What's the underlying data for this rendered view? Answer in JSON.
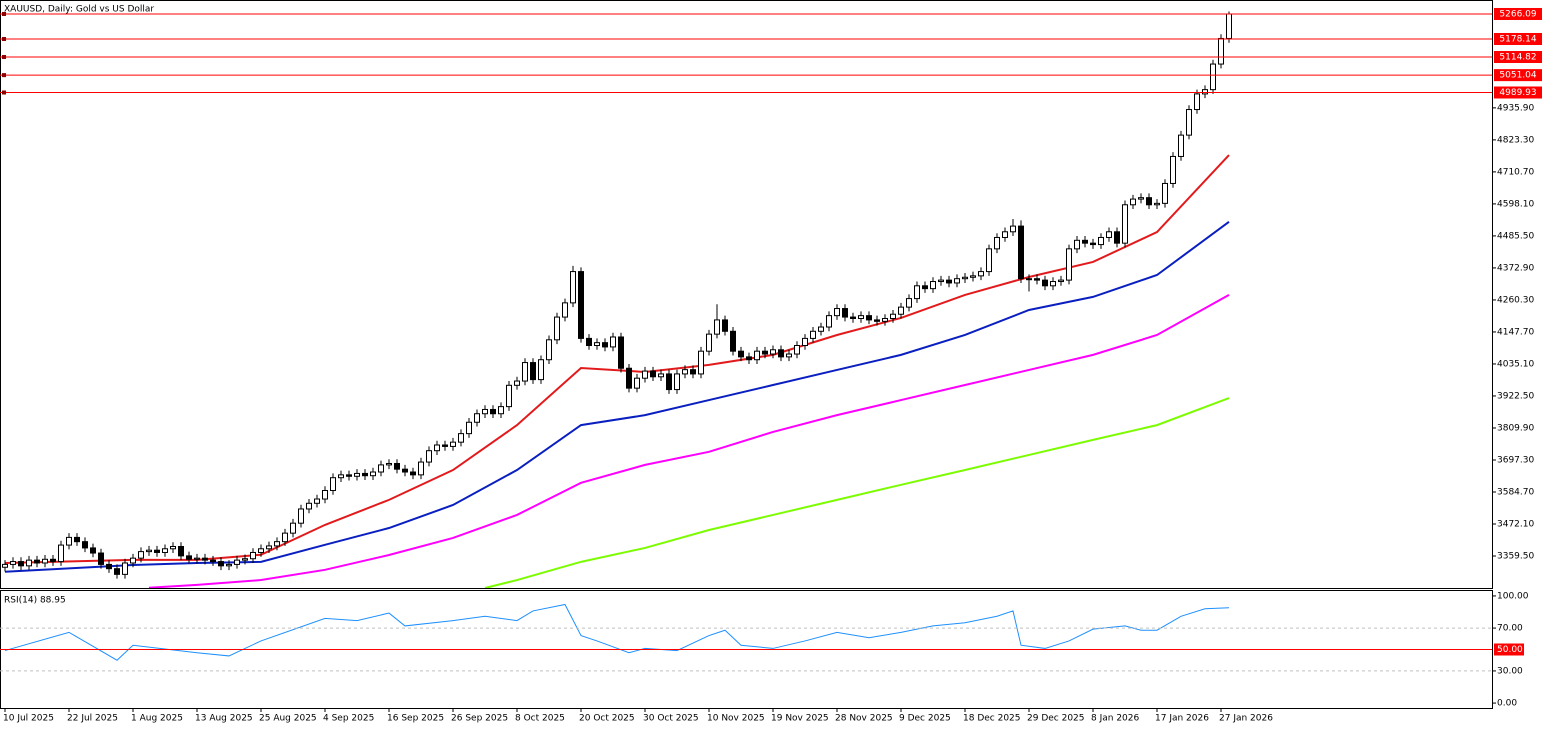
{
  "chart_data": [
    {
      "type": "candlestick",
      "title": "XAUUSD, Daily:  Gold vs US Dollar",
      "categories": [
        "10 Jul 2025",
        null,
        null,
        null,
        null,
        null,
        null,
        null,
        "22 Jul 2025",
        null,
        null,
        null,
        null,
        null,
        null,
        null,
        "1 Aug 2025",
        null,
        null,
        null,
        null,
        null,
        null,
        null,
        "13 Aug 2025",
        null,
        null,
        null,
        null,
        null,
        null,
        null,
        "25 Aug 2025",
        null,
        null,
        null,
        null,
        null,
        null,
        null,
        "4 Sep 2025",
        null,
        null,
        null,
        null,
        null,
        null,
        null,
        "16 Sep 2025",
        null,
        null,
        null,
        null,
        null,
        null,
        null,
        "26 Sep 2025",
        null,
        null,
        null,
        null,
        null,
        null,
        null,
        "8 Oct 2025",
        null,
        null,
        null,
        null,
        null,
        null,
        null,
        "20 Oct 2025",
        null,
        null,
        null,
        null,
        null,
        null,
        null,
        "30 Oct 2025",
        null,
        null,
        null,
        null,
        null,
        null,
        null,
        "10 Nov 2025",
        null,
        null,
        null,
        null,
        null,
        null,
        null,
        "19 Nov 2025",
        null,
        null,
        null,
        null,
        null,
        null,
        null,
        "28 Nov 2025",
        null,
        null,
        null,
        null,
        null,
        null,
        null,
        "9 Dec 2025",
        null,
        null,
        null,
        null,
        null,
        null,
        null,
        "18 Dec 2025",
        null,
        null,
        null,
        null,
        null,
        null,
        null,
        "29 Dec 2025",
        null,
        null,
        null,
        null,
        null,
        null,
        null,
        "8 Jan 2026",
        null,
        null,
        null,
        null,
        null,
        null,
        null,
        "17 Jan 2026",
        null,
        null,
        null,
        null,
        null,
        null,
        null,
        "27 Jan 2026",
        null
      ],
      "open": [
        3320,
        3330,
        3340,
        3325,
        3345,
        3335,
        3348,
        3340,
        3398,
        3425,
        3410,
        3388,
        3370,
        3330,
        3315,
        3295,
        3335,
        3352,
        3375,
        3380,
        3372,
        3385,
        3393,
        3360,
        3348,
        3352,
        3345,
        3340,
        3325,
        3330,
        3345,
        3350,
        3372,
        3385,
        3395,
        3410,
        3440,
        3475,
        3525,
        3545,
        3560,
        3590,
        3635,
        3645,
        3640,
        3650,
        3642,
        3655,
        3680,
        3685,
        3665,
        3655,
        3645,
        3690,
        3730,
        3750,
        3745,
        3760,
        3790,
        3830,
        3860,
        3875,
        3860,
        3885,
        3960,
        3975,
        4040,
        3980,
        4050,
        4120,
        4200,
        4250,
        4360,
        4125,
        4100,
        4110,
        4095,
        4130,
        4020,
        3950,
        3985,
        4010,
        3990,
        4000,
        3945,
        4000,
        4015,
        4000,
        4080,
        4140,
        4190,
        4150,
        4080,
        4060,
        4050,
        4080,
        4070,
        4085,
        4060,
        4070,
        4100,
        4125,
        4150,
        4165,
        4205,
        4230,
        4200,
        4195,
        4205,
        4190,
        4185,
        4195,
        4210,
        4235,
        4265,
        4310,
        4300,
        4325,
        4330,
        4320,
        4335,
        4340,
        4345,
        4360,
        4440,
        4480,
        4500,
        4520,
        4335,
        4335,
        4330,
        4310,
        4325,
        4330,
        4440,
        4470,
        4460,
        4455,
        4480,
        4500,
        4460,
        4595,
        4615,
        4620,
        4595,
        4600,
        4670,
        4765,
        4840,
        4930,
        4985,
        5000,
        5090,
        5180
      ],
      "high": [
        3345,
        3355,
        3355,
        3360,
        3360,
        3363,
        3363,
        3413,
        3440,
        3440,
        3425,
        3403,
        3385,
        3345,
        3330,
        3350,
        3367,
        3390,
        3395,
        3395,
        3400,
        3408,
        3408,
        3375,
        3367,
        3367,
        3360,
        3355,
        3345,
        3360,
        3365,
        3387,
        3400,
        3410,
        3425,
        3455,
        3490,
        3540,
        3560,
        3575,
        3605,
        3650,
        3660,
        3660,
        3665,
        3665,
        3670,
        3695,
        3700,
        3700,
        3680,
        3670,
        3705,
        3745,
        3765,
        3765,
        3775,
        3805,
        3845,
        3875,
        3890,
        3890,
        3900,
        3975,
        3990,
        4055,
        4055,
        4065,
        4135,
        4215,
        4265,
        4380,
        4375,
        4140,
        4125,
        4125,
        4145,
        4145,
        4035,
        4000,
        4025,
        4025,
        4015,
        4015,
        4015,
        4030,
        4030,
        4095,
        4155,
        4245,
        4205,
        4165,
        4095,
        4075,
        4095,
        4095,
        4100,
        4100,
        4085,
        4115,
        4140,
        4165,
        4180,
        4220,
        4245,
        4245,
        4215,
        4220,
        4220,
        4205,
        4210,
        4225,
        4250,
        4280,
        4325,
        4325,
        4340,
        4345,
        4345,
        4350,
        4355,
        4360,
        4375,
        4455,
        4495,
        4515,
        4545,
        4540,
        4350,
        4350,
        4345,
        4340,
        4345,
        4455,
        4485,
        4485,
        4475,
        4495,
        4515,
        4515,
        4610,
        4630,
        4635,
        4635,
        4615,
        4685,
        4780,
        4855,
        4945,
        5000,
        5015,
        5105,
        5195,
        5275
      ],
      "low": [
        3305,
        3315,
        3310,
        3310,
        3320,
        3320,
        3325,
        3325,
        3383,
        3395,
        3373,
        3355,
        3315,
        3300,
        3280,
        3280,
        3320,
        3337,
        3360,
        3357,
        3357,
        3370,
        3345,
        3333,
        3333,
        3330,
        3325,
        3310,
        3310,
        3315,
        3330,
        3335,
        3357,
        3370,
        3380,
        3395,
        3425,
        3460,
        3510,
        3530,
        3545,
        3575,
        3620,
        3625,
        3625,
        3627,
        3627,
        3640,
        3665,
        3650,
        3640,
        3630,
        3630,
        3675,
        3715,
        3730,
        3730,
        3745,
        3775,
        3815,
        3845,
        3845,
        3845,
        3870,
        3945,
        3960,
        3965,
        3965,
        4035,
        4105,
        4185,
        4235,
        4110,
        4085,
        4085,
        4080,
        4080,
        4005,
        3935,
        3935,
        3970,
        3975,
        3975,
        3930,
        3930,
        3985,
        3985,
        3985,
        4065,
        4125,
        4135,
        4065,
        4045,
        4035,
        4035,
        4055,
        4055,
        4045,
        4045,
        4055,
        4085,
        4110,
        4135,
        4150,
        4190,
        4185,
        4180,
        4180,
        4175,
        4170,
        4170,
        4180,
        4195,
        4220,
        4250,
        4285,
        4285,
        4310,
        4305,
        4305,
        4320,
        4325,
        4330,
        4345,
        4425,
        4465,
        4485,
        4320,
        4290,
        4315,
        4295,
        4295,
        4310,
        4315,
        4425,
        4445,
        4440,
        4440,
        4465,
        4445,
        4445,
        4580,
        4600,
        4580,
        4580,
        4585,
        4655,
        4750,
        4825,
        4915,
        4970,
        4985,
        5075,
        5165
      ],
      "close": [
        3330,
        3340,
        3325,
        3345,
        3335,
        3348,
        3340,
        3398,
        3425,
        3410,
        3388,
        3370,
        3330,
        3315,
        3295,
        3335,
        3352,
        3375,
        3380,
        3372,
        3385,
        3393,
        3360,
        3348,
        3352,
        3345,
        3340,
        3325,
        3330,
        3345,
        3350,
        3372,
        3385,
        3395,
        3410,
        3440,
        3475,
        3525,
        3545,
        3560,
        3590,
        3635,
        3645,
        3640,
        3650,
        3642,
        3655,
        3680,
        3685,
        3665,
        3655,
        3645,
        3690,
        3730,
        3750,
        3745,
        3760,
        3790,
        3830,
        3860,
        3875,
        3860,
        3885,
        3960,
        3975,
        4040,
        3980,
        4050,
        4120,
        4200,
        4250,
        4360,
        4125,
        4100,
        4110,
        4095,
        4130,
        4020,
        3950,
        3985,
        4010,
        3990,
        4000,
        3945,
        4000,
        4015,
        4000,
        4080,
        4140,
        4190,
        4150,
        4080,
        4060,
        4050,
        4080,
        4070,
        4085,
        4060,
        4070,
        4100,
        4125,
        4150,
        4165,
        4205,
        4230,
        4200,
        4195,
        4205,
        4190,
        4185,
        4195,
        4210,
        4235,
        4265,
        4310,
        4300,
        4325,
        4330,
        4320,
        4335,
        4340,
        4345,
        4360,
        4440,
        4480,
        4500,
        4520,
        4335,
        4335,
        4330,
        4310,
        4325,
        4330,
        4440,
        4470,
        4460,
        4455,
        4480,
        4500,
        4460,
        4595,
        4615,
        4620,
        4595,
        4600,
        4670,
        4765,
        4840,
        4930,
        4985,
        5000,
        5090,
        5180,
        5266.09
      ],
      "up_color": "#ffffff",
      "down_color": "#000000",
      "moving_averages": [
        {
          "color": "#e31a1c",
          "x": [
            0,
            16,
            24,
            32,
            40,
            48,
            56,
            64,
            72,
            80,
            88,
            96,
            104,
            112,
            120,
            128,
            136,
            144,
            153
          ],
          "values": [
            3335,
            3346,
            3346,
            3364,
            3469,
            3557,
            3662,
            3820,
            4021,
            4007,
            4032,
            4067,
            4137,
            4197,
            4278,
            4341,
            4394,
            4499,
            4770
          ]
        },
        {
          "color": "#0a1fbf",
          "x": [
            0,
            16,
            24,
            32,
            40,
            48,
            56,
            64,
            72,
            80,
            88,
            96,
            104,
            112,
            120,
            128,
            136,
            144,
            153
          ],
          "values": [
            3304,
            3328,
            3335,
            3339,
            3399,
            3458,
            3539,
            3662,
            3820,
            3855,
            3908,
            3961,
            4014,
            4067,
            4137,
            4225,
            4271,
            4348,
            4535
          ]
        },
        {
          "color": "#ff00ff",
          "x": [
            18,
            24,
            32,
            40,
            48,
            56,
            64,
            72,
            80,
            88,
            96,
            104,
            112,
            120,
            128,
            136,
            144,
            153
          ],
          "values": [
            3248,
            3258,
            3275,
            3311,
            3363,
            3423,
            3504,
            3617,
            3680,
            3726,
            3796,
            3855,
            3908,
            3961,
            4014,
            4067,
            4137,
            4278
          ]
        },
        {
          "color": "#7cfc00",
          "x": [
            60,
            64,
            72,
            80,
            88,
            96,
            104,
            112,
            120,
            128,
            136,
            144,
            153
          ],
          "values": [
            3247,
            3275,
            3339,
            3388,
            3451,
            3504,
            3557,
            3610,
            3662,
            3715,
            3768,
            3820,
            3915
          ]
        }
      ],
      "levels": [
        5266.09,
        5178.14,
        5114.82,
        5051.04,
        4989.93
      ],
      "level_color": "#ff0000",
      "ylim": [
        3243.5,
        5315.3
      ],
      "yticks": [
        {
          "value": 4935.9,
          "label": "4935.90"
        },
        {
          "value": 4823.3,
          "label": "4823.30"
        },
        {
          "value": 4710.7,
          "label": "4710.70"
        },
        {
          "value": 4598.1,
          "label": "4598.10"
        },
        {
          "value": 4485.5,
          "label": "4485.50"
        },
        {
          "value": 4372.9,
          "label": "4372.90"
        },
        {
          "value": 4260.3,
          "label": "4260.30"
        },
        {
          "value": 4147.7,
          "label": "4147.70"
        },
        {
          "value": 4035.1,
          "label": "4035.10"
        },
        {
          "value": 3922.5,
          "label": "3922.50"
        },
        {
          "value": 3809.9,
          "label": "3809.90"
        },
        {
          "value": 3697.3,
          "label": "3697.30"
        },
        {
          "value": 3584.7,
          "label": "3584.70"
        },
        {
          "value": 3472.1,
          "label": "3472.10"
        },
        {
          "value": 3359.5,
          "label": "3359.50"
        }
      ]
    },
    {
      "type": "line",
      "title": "RSI(14) 88.95",
      "color": "#1e90ff",
      "x": [
        0,
        8,
        14,
        16,
        24,
        28,
        32,
        40,
        44,
        48,
        50,
        56,
        60,
        64,
        66,
        70,
        72,
        74,
        78,
        80,
        84,
        88,
        90,
        92,
        96,
        100,
        104,
        108,
        112,
        116,
        120,
        124,
        126,
        127,
        130,
        133,
        136,
        140,
        142,
        144,
        147,
        150,
        153
      ],
      "values": [
        49,
        66,
        40,
        54,
        47,
        44,
        58,
        79,
        77,
        84,
        72,
        77,
        81,
        77,
        86,
        92,
        63,
        58,
        47,
        51,
        49,
        63,
        68,
        54,
        51,
        58,
        66,
        61,
        66,
        72,
        75,
        81,
        86,
        54,
        51,
        58,
        69,
        72,
        68,
        68,
        81,
        88,
        88.95
      ],
      "ylim": [
        -4.6,
        104.6
      ],
      "yticks": [
        {
          "value": 100,
          "label": "100.00"
        },
        {
          "value": 0,
          "label": "0.00"
        }
      ],
      "levels": [
        {
          "value": 70,
          "label": "70.00",
          "color": "#c0c0c0",
          "dash": true,
          "label_box": false
        },
        {
          "value": 50,
          "label": "50.00",
          "color": "#ff0000",
          "dash": false,
          "label_box": true
        },
        {
          "value": 30,
          "label": "30.00",
          "color": "#c0c0c0",
          "dash": true,
          "label_box": false
        }
      ]
    }
  ]
}
